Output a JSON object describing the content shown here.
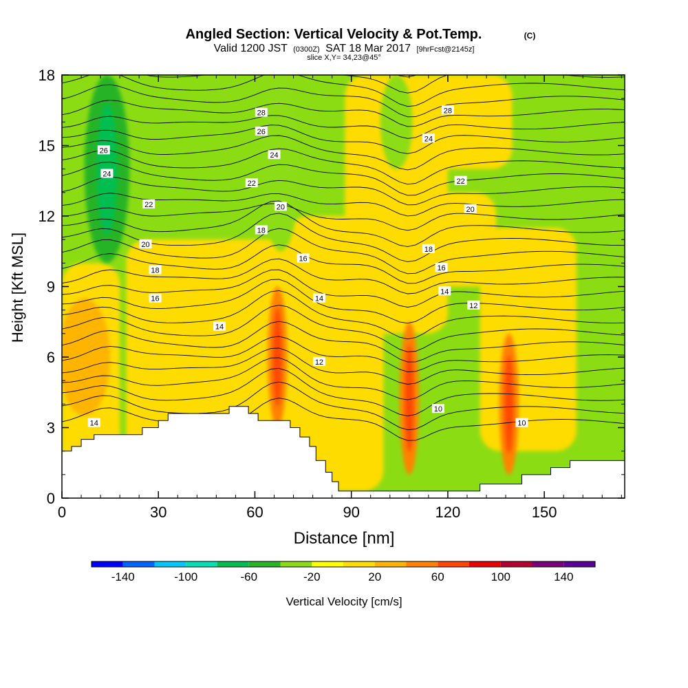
{
  "chart_data": {
    "type": "heatmap",
    "title": "Angled Section: Vertical Velocity & Pot.Temp.",
    "title_suffix": "(C)",
    "subtitle": {
      "valid_prefix": "Valid 1200 JST",
      "utc": "(0300Z)",
      "date": "SAT 18 Mar 2017",
      "fcst": "[9hrFcst@2145z]"
    },
    "slice_label": "slice X,Y= 34,23@45°",
    "xlabel": "Distance [nm]",
    "ylabel": "Height [Kft MSL]",
    "xlim": [
      0,
      175
    ],
    "ylim": [
      0,
      18
    ],
    "xticks": [
      0,
      30,
      60,
      90,
      120,
      150
    ],
    "yticks": [
      0,
      3,
      6,
      9,
      12,
      15,
      18
    ],
    "colorbar": {
      "label": "Vertical Velocity [cm/s]",
      "bounds": [
        -160,
        -140,
        -120,
        -100,
        -80,
        -60,
        -40,
        -20,
        0,
        20,
        40,
        60,
        80,
        100,
        120,
        140,
        160
      ],
      "tick_labels": [
        "-140",
        "-100",
        "-60",
        "-20",
        "20",
        "60",
        "100",
        "140"
      ],
      "tick_values": [
        -140,
        -100,
        -60,
        -20,
        20,
        60,
        100,
        140
      ],
      "colors": [
        "#0000ff",
        "#0064ff",
        "#00c8ff",
        "#00e0b4",
        "#00be50",
        "#28b428",
        "#8cdc14",
        "#ffff00",
        "#ffdc00",
        "#ffb400",
        "#ff8200",
        "#ff4600",
        "#e60000",
        "#b40032",
        "#780078",
        "#5a0096"
      ]
    },
    "grid": false,
    "velocity_columns": [
      {
        "x_center": 14,
        "half_width": 7,
        "y_bottom": 10,
        "y_top": 18,
        "value": -50
      },
      {
        "x_center": 68,
        "half_width": 6,
        "y_bottom": 10.5,
        "y_top": 18,
        "value": -30
      },
      {
        "x_center": 104,
        "half_width": 5,
        "y_bottom": 14,
        "y_top": 18,
        "value": -30
      },
      {
        "x_center": 67,
        "half_width": 3,
        "y_bottom": 3,
        "y_top": 9,
        "value": 50
      },
      {
        "x_center": 108,
        "half_width": 3,
        "y_bottom": 1,
        "y_top": 7.5,
        "value": 50
      },
      {
        "x_center": 139,
        "half_width": 3,
        "y_bottom": 1,
        "y_top": 7,
        "value": 50
      },
      {
        "x_center": 7,
        "half_width": 8,
        "y_bottom": 3.5,
        "y_top": 8.5,
        "value": 30
      }
    ],
    "isentropes": {
      "levels": [
        10,
        12,
        14,
        16,
        18,
        20,
        22,
        24,
        26,
        28
      ],
      "labels": [
        {
          "text": "26",
          "x": 13,
          "y": 14.8
        },
        {
          "text": "24",
          "x": 14,
          "y": 13.8
        },
        {
          "text": "22",
          "x": 27,
          "y": 12.5
        },
        {
          "text": "20",
          "x": 26,
          "y": 10.8
        },
        {
          "text": "18",
          "x": 29,
          "y": 9.7
        },
        {
          "text": "16",
          "x": 29,
          "y": 8.5
        },
        {
          "text": "14",
          "x": 49,
          "y": 7.3
        },
        {
          "text": "14",
          "x": 10,
          "y": 3.2
        },
        {
          "text": "28",
          "x": 62,
          "y": 16.4
        },
        {
          "text": "26",
          "x": 62,
          "y": 15.6
        },
        {
          "text": "24",
          "x": 66,
          "y": 14.6
        },
        {
          "text": "22",
          "x": 59,
          "y": 13.4
        },
        {
          "text": "20",
          "x": 68,
          "y": 12.4
        },
        {
          "text": "18",
          "x": 62,
          "y": 11.4
        },
        {
          "text": "16",
          "x": 75,
          "y": 10.2
        },
        {
          "text": "14",
          "x": 80,
          "y": 8.5
        },
        {
          "text": "12",
          "x": 80,
          "y": 5.8
        },
        {
          "text": "28",
          "x": 120,
          "y": 16.5
        },
        {
          "text": "24",
          "x": 114,
          "y": 15.3
        },
        {
          "text": "22",
          "x": 124,
          "y": 13.5
        },
        {
          "text": "20",
          "x": 127,
          "y": 12.3
        },
        {
          "text": "18",
          "x": 114,
          "y": 10.6
        },
        {
          "text": "16",
          "x": 118,
          "y": 9.8
        },
        {
          "text": "14",
          "x": 119,
          "y": 8.8
        },
        {
          "text": "12",
          "x": 128,
          "y": 8.2
        },
        {
          "text": "10",
          "x": 117,
          "y": 3.8
        },
        {
          "text": "10",
          "x": 143,
          "y": 3.2
        }
      ]
    },
    "terrain": [
      {
        "x": 0,
        "y": 2
      },
      {
        "x": 3,
        "y": 2
      },
      {
        "x": 3,
        "y": 2.2
      },
      {
        "x": 6,
        "y": 2.2
      },
      {
        "x": 6,
        "y": 2.5
      },
      {
        "x": 10,
        "y": 2.5
      },
      {
        "x": 10,
        "y": 2.7
      },
      {
        "x": 25,
        "y": 2.7
      },
      {
        "x": 25,
        "y": 3
      },
      {
        "x": 30,
        "y": 3
      },
      {
        "x": 30,
        "y": 3.3
      },
      {
        "x": 33,
        "y": 3.3
      },
      {
        "x": 33,
        "y": 3.6
      },
      {
        "x": 52,
        "y": 3.6
      },
      {
        "x": 52,
        "y": 3.9
      },
      {
        "x": 58,
        "y": 3.9
      },
      {
        "x": 58,
        "y": 3.6
      },
      {
        "x": 61,
        "y": 3.6
      },
      {
        "x": 61,
        "y": 3.3
      },
      {
        "x": 71,
        "y": 3.3
      },
      {
        "x": 71,
        "y": 3
      },
      {
        "x": 74,
        "y": 3
      },
      {
        "x": 74,
        "y": 2.6
      },
      {
        "x": 77,
        "y": 2.6
      },
      {
        "x": 77,
        "y": 2.2
      },
      {
        "x": 79,
        "y": 2.2
      },
      {
        "x": 79,
        "y": 1.6
      },
      {
        "x": 82,
        "y": 1.6
      },
      {
        "x": 82,
        "y": 1.1
      },
      {
        "x": 84,
        "y": 1.1
      },
      {
        "x": 84,
        "y": 0.7
      },
      {
        "x": 86,
        "y": 0.7
      },
      {
        "x": 86,
        "y": 0.3
      },
      {
        "x": 130,
        "y": 0.3
      },
      {
        "x": 130,
        "y": 0.6
      },
      {
        "x": 143,
        "y": 0.6
      },
      {
        "x": 143,
        "y": 1
      },
      {
        "x": 152,
        "y": 1
      },
      {
        "x": 152,
        "y": 1.3
      },
      {
        "x": 158,
        "y": 1.3
      },
      {
        "x": 158,
        "y": 1.6
      },
      {
        "x": 175,
        "y": 1.6
      }
    ]
  }
}
